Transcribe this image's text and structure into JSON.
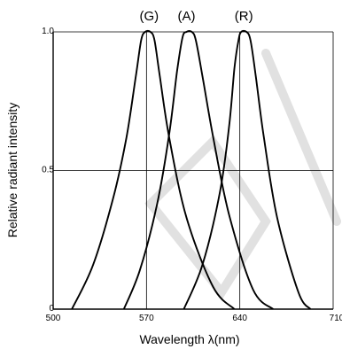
{
  "chart_data": {
    "type": "line",
    "xlabel": "Wavelength λ(nm)",
    "ylabel": "Relative radiant intensity",
    "xlim": [
      500,
      710
    ],
    "ylim": [
      0,
      1.0
    ],
    "x_ticks": [
      "500",
      "570",
      "640",
      "710"
    ],
    "y_ticks": [
      "0",
      "0.5",
      "1.0"
    ],
    "grid": true,
    "series": [
      {
        "name": "(G)",
        "peak_nm": 572,
        "x": [
          514,
          530,
          545,
          555,
          562,
          566,
          569,
          573,
          576,
          580,
          587,
          600,
          620,
          636
        ],
        "y": [
          0.0,
          0.16,
          0.4,
          0.62,
          0.84,
          0.97,
          1.0,
          1.0,
          0.97,
          0.84,
          0.62,
          0.33,
          0.08,
          0.0
        ]
      },
      {
        "name": "(A)",
        "peak_nm": 600,
        "x": [
          553,
          565,
          578,
          587,
          593,
          597,
          600,
          604,
          607,
          612,
          620,
          632,
          650,
          665
        ],
        "y": [
          0.0,
          0.14,
          0.38,
          0.63,
          0.86,
          0.98,
          1.0,
          1.0,
          0.97,
          0.84,
          0.62,
          0.34,
          0.07,
          0.0
        ]
      },
      {
        "name": "(R)",
        "peak_nm": 643,
        "x": [
          598,
          612,
          625,
          632,
          636,
          639,
          641,
          645,
          648,
          652,
          658,
          668,
          684,
          693
        ],
        "y": [
          0.0,
          0.16,
          0.42,
          0.66,
          0.87,
          0.97,
          1.0,
          1.0,
          0.97,
          0.84,
          0.62,
          0.33,
          0.06,
          0.0
        ]
      }
    ]
  }
}
